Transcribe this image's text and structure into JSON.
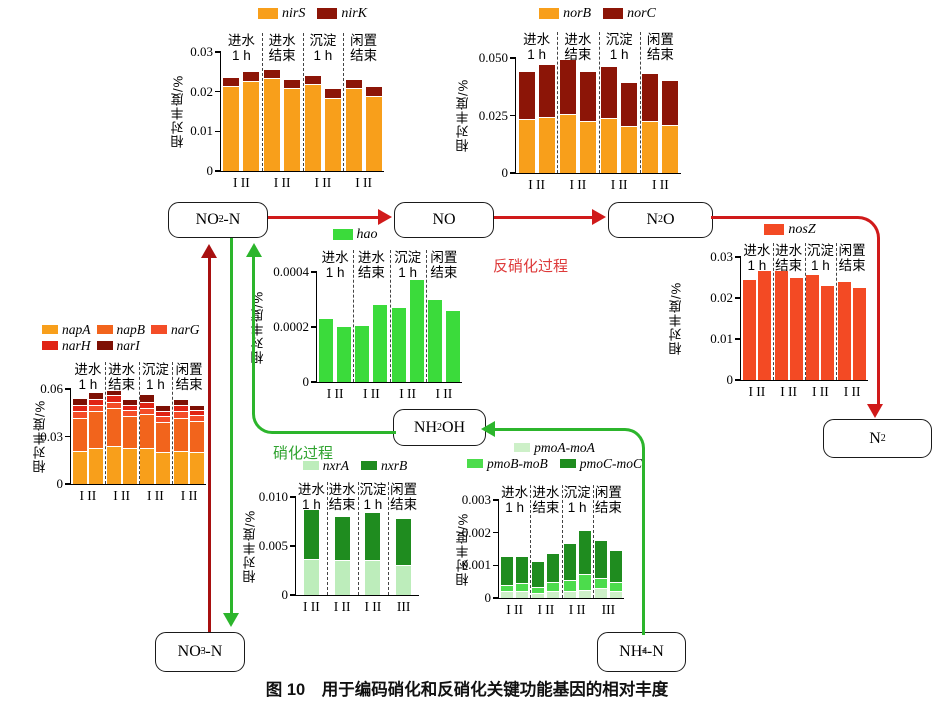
{
  "labels": {
    "ylabel": "相对丰度/%",
    "denitrification": "反硝化过程",
    "nitrification": "硝化过程",
    "caption": "图 10　用于编码硝化和反硝化关键功能基因的相对丰度"
  },
  "nodes": {
    "no2": {
      "pre": "NO",
      "sub": "2",
      "sup": "−",
      "post": "-N"
    },
    "no": {
      "pre": "NO"
    },
    "n2o": {
      "pre": "N",
      "sub": "2",
      "post": "O"
    },
    "n2": {
      "pre": "N",
      "sub": "2"
    },
    "nh2oh": {
      "pre": "NH",
      "sub": "2",
      "post": "OH"
    },
    "no3": {
      "pre": "NO",
      "sub": "3",
      "sup": "−",
      "post": "-N"
    },
    "nh4": {
      "pre": "NH",
      "sub": "4",
      "sup": "+",
      "post": "-N"
    }
  },
  "colors": {
    "arrow_red": "#D01A1A",
    "arrow_dark_red": "#A81010",
    "arrow_green": "#2CB52C"
  },
  "chart_data": [
    {
      "id": "nir",
      "type": "stacked-bar",
      "ylabel": "相对丰度/%",
      "ylim": [
        0,
        0.03
      ],
      "yticks": [
        {
          "v": 0,
          "t": "0"
        },
        {
          "v": 0.01,
          "t": "0.01"
        },
        {
          "v": 0.02,
          "t": "0.02"
        },
        {
          "v": 0.03,
          "t": "0.03"
        }
      ],
      "series": [
        {
          "name": "nirS",
          "color": "#F89F1B"
        },
        {
          "name": "nirK",
          "color": "#8C1507"
        }
      ],
      "legend_rows": [
        [
          0,
          1
        ]
      ],
      "groups": [
        {
          "label": [
            "进水",
            "1 h"
          ],
          "xlabel": "I II",
          "bars": [
            [
              0.0215,
              0.002
            ],
            [
              0.0228,
              0.0022
            ]
          ]
        },
        {
          "label": [
            "进水",
            "结束"
          ],
          "xlabel": "I II",
          "bars": [
            [
              0.0235,
              0.002
            ],
            [
              0.021,
              0.002
            ]
          ]
        },
        {
          "label": [
            "沉淀",
            "1 h"
          ],
          "xlabel": "I II",
          "bars": [
            [
              0.022,
              0.002
            ],
            [
              0.0185,
              0.0022
            ]
          ]
        },
        {
          "label": [
            "闲置",
            "结束"
          ],
          "xlabel": "I II",
          "bars": [
            [
              0.021,
              0.002
            ],
            [
              0.0188,
              0.0024
            ]
          ]
        }
      ]
    },
    {
      "id": "nor",
      "type": "stacked-bar",
      "ylabel": "相对丰度/%",
      "ylim": [
        0,
        0.05
      ],
      "yticks": [
        {
          "v": 0,
          "t": "0"
        },
        {
          "v": 0.025,
          "t": "0.025"
        },
        {
          "v": 0.05,
          "t": "0.050"
        }
      ],
      "series": [
        {
          "name": "norB",
          "color": "#F89F1B"
        },
        {
          "name": "norC",
          "color": "#8C1507"
        }
      ],
      "legend_rows": [
        [
          0,
          1
        ]
      ],
      "groups": [
        {
          "label": [
            "进水",
            "1 h"
          ],
          "xlabel": "I II",
          "bars": [
            [
              0.0235,
              0.0205
            ],
            [
              0.0245,
              0.0225
            ]
          ]
        },
        {
          "label": [
            "进水",
            "结束"
          ],
          "xlabel": "I II",
          "bars": [
            [
              0.0255,
              0.0235
            ],
            [
              0.0225,
              0.0215
            ]
          ]
        },
        {
          "label": [
            "沉淀",
            "1 h"
          ],
          "xlabel": "I II",
          "bars": [
            [
              0.0238,
              0.0222
            ],
            [
              0.0205,
              0.0185
            ]
          ]
        },
        {
          "label": [
            "闲置",
            "结束"
          ],
          "xlabel": "I II",
          "bars": [
            [
              0.0225,
              0.0205
            ],
            [
              0.0208,
              0.0192
            ]
          ]
        }
      ]
    },
    {
      "id": "hao",
      "type": "bar",
      "ylabel": "相对丰度/%",
      "ylim": [
        0,
        0.0004
      ],
      "yticks": [
        {
          "v": 0,
          "t": "0"
        },
        {
          "v": 0.0002,
          "t": "0.0002"
        },
        {
          "v": 0.0004,
          "t": "0.0004"
        }
      ],
      "series": [
        {
          "name": "hao",
          "color": "#3BDB3B"
        }
      ],
      "legend_rows": [
        [
          0
        ]
      ],
      "groups": [
        {
          "label": [
            "进水",
            "1 h"
          ],
          "xlabel": "I II",
          "bars": [
            [
              0.00023
            ],
            [
              0.0002
            ]
          ]
        },
        {
          "label": [
            "进水",
            "结束"
          ],
          "xlabel": "I II",
          "bars": [
            [
              0.000205
            ],
            [
              0.00028
            ]
          ]
        },
        {
          "label": [
            "沉淀",
            "1 h"
          ],
          "xlabel": "I II",
          "bars": [
            [
              0.00027
            ],
            [
              0.00037
            ]
          ]
        },
        {
          "label": [
            "闲置",
            "结束"
          ],
          "xlabel": "I II",
          "bars": [
            [
              0.0003
            ],
            [
              0.00026
            ]
          ]
        }
      ]
    },
    {
      "id": "nosZ",
      "type": "bar",
      "ylabel": "相对丰度/%",
      "ylim": [
        0,
        0.03
      ],
      "yticks": [
        {
          "v": 0,
          "t": "0"
        },
        {
          "v": 0.01,
          "t": "0.01"
        },
        {
          "v": 0.02,
          "t": "0.02"
        },
        {
          "v": 0.03,
          "t": "0.03"
        }
      ],
      "series": [
        {
          "name": "nosZ",
          "color": "#F34A24"
        }
      ],
      "legend_rows": [
        [
          0
        ]
      ],
      "groups": [
        {
          "label": [
            "进水",
            "1 h"
          ],
          "xlabel": "I II",
          "bars": [
            [
              0.0245
            ],
            [
              0.0265
            ]
          ]
        },
        {
          "label": [
            "进水",
            "结束"
          ],
          "xlabel": "I II",
          "bars": [
            [
              0.0267
            ],
            [
              0.025
            ]
          ]
        },
        {
          "label": [
            "沉淀",
            "1 h"
          ],
          "xlabel": "I II",
          "bars": [
            [
              0.0255
            ],
            [
              0.023
            ]
          ]
        },
        {
          "label": [
            "闲置",
            "结束"
          ],
          "xlabel": "I II",
          "bars": [
            [
              0.024
            ],
            [
              0.0225
            ]
          ]
        }
      ]
    },
    {
      "id": "nap-nar",
      "type": "stacked-bar",
      "ylabel": "相对丰度/%",
      "ylim": [
        0,
        0.06
      ],
      "yticks": [
        {
          "v": 0,
          "t": "0"
        },
        {
          "v": 0.03,
          "t": "0.03"
        },
        {
          "v": 0.06,
          "t": "0.06"
        }
      ],
      "series": [
        {
          "name": "napA",
          "color": "#F89F1B"
        },
        {
          "name": "napB",
          "color": "#F2641C"
        },
        {
          "name": "narG",
          "color": "#F44D28"
        },
        {
          "name": "narH",
          "color": "#E02314"
        },
        {
          "name": "narI",
          "color": "#7E1004"
        }
      ],
      "legend_rows": [
        [
          0,
          1,
          2
        ],
        [
          3,
          4
        ]
      ],
      "groups": [
        {
          "label": [
            "进水",
            "1 h"
          ],
          "xlabel": "I II",
          "bars": [
            [
              0.021,
              0.021,
              0.004,
              0.004,
              0.004
            ],
            [
              0.023,
              0.023,
              0.004,
              0.004,
              0.0035
            ]
          ]
        },
        {
          "label": [
            "进水",
            "结束"
          ],
          "xlabel": "I II",
          "bars": [
            [
              0.024,
              0.024,
              0.004,
              0.004,
              0.003
            ],
            [
              0.0225,
              0.0205,
              0.004,
              0.003,
              0.003
            ]
          ]
        },
        {
          "label": [
            "沉淀",
            "1 h"
          ],
          "xlabel": "I II",
          "bars": [
            [
              0.0225,
              0.0215,
              0.004,
              0.004,
              0.004
            ],
            [
              0.02,
              0.019,
              0.004,
              0.003,
              0.003
            ]
          ]
        },
        {
          "label": [
            "闲置",
            "结束"
          ],
          "xlabel": "I II",
          "bars": [
            [
              0.021,
              0.021,
              0.004,
              0.004,
              0.003
            ],
            [
              0.02,
              0.02,
              0.0035,
              0.003,
              0.0025
            ]
          ]
        }
      ]
    },
    {
      "id": "nxr",
      "type": "stacked-bar",
      "ylabel": "相对丰度/%",
      "ylim": [
        0,
        0.01
      ],
      "yticks": [
        {
          "v": 0,
          "t": "0"
        },
        {
          "v": 0.005,
          "t": "0.005"
        },
        {
          "v": 0.01,
          "t": "0.010"
        }
      ],
      "series": [
        {
          "name": "nxrA",
          "color": "#BDEDBB"
        },
        {
          "name": "nxrB",
          "color": "#1F8C1F"
        }
      ],
      "legend_rows": [
        [
          0,
          1
        ]
      ],
      "groups": [
        {
          "label": [
            "进水",
            "1 h"
          ],
          "xlabel": "I II",
          "bars": [
            [
              0.0037,
              0.005
            ]
          ]
        },
        {
          "label": [
            "进水",
            "结束"
          ],
          "xlabel": "I II",
          "bars": [
            [
              0.0036,
              0.0044
            ]
          ]
        },
        {
          "label": [
            "沉淀",
            "1 h"
          ],
          "xlabel": "I II",
          "bars": [
            [
              0.0036,
              0.0048
            ]
          ]
        },
        {
          "label": [
            "闲置",
            "结束"
          ],
          "xlabel": "III",
          "bars": [
            [
              0.0031,
              0.0047
            ]
          ]
        }
      ]
    },
    {
      "id": "pmo",
      "type": "stacked-bar",
      "ylabel": "相对丰度/%",
      "ylim": [
        0,
        0.003
      ],
      "yticks": [
        {
          "v": 0,
          "t": "0"
        },
        {
          "v": 0.001,
          "t": "0.001"
        },
        {
          "v": 0.002,
          "t": "0.002"
        },
        {
          "v": 0.003,
          "t": "0.003"
        }
      ],
      "series": [
        {
          "name": "pmoA-moA",
          "color": "#CDF0C8"
        },
        {
          "name": "pmoB-moB",
          "color": "#4CDC4C"
        },
        {
          "name": "pmoC-moC",
          "color": "#1F8C1F"
        }
      ],
      "legend_rows": [
        [
          0
        ],
        [
          1,
          2
        ]
      ],
      "groups": [
        {
          "label": [
            "进水",
            "1 h"
          ],
          "xlabel": "I II",
          "bars": [
            [
              0.0002,
              0.0002,
              0.00085
            ],
            [
              0.0002,
              0.00025,
              0.0008
            ]
          ]
        },
        {
          "label": [
            "进水",
            "结束"
          ],
          "xlabel": "I II",
          "bars": [
            [
              0.00015,
              0.0002,
              0.00075
            ],
            [
              0.0002,
              0.0003,
              0.00085
            ]
          ]
        },
        {
          "label": [
            "沉淀",
            "1 h"
          ],
          "xlabel": "I II",
          "bars": [
            [
              0.0002,
              0.00035,
              0.0011
            ],
            [
              0.00025,
              0.0005,
              0.0013
            ]
          ]
        },
        {
          "label": [
            "闲置",
            "结束"
          ],
          "xlabel": "III",
          "bars": [
            [
              0.0003,
              0.0003,
              0.00115
            ],
            [
              0.0002,
              0.0003,
              0.00095
            ]
          ]
        }
      ]
    }
  ]
}
